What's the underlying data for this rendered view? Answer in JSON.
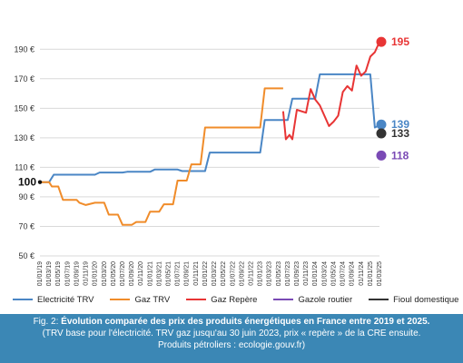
{
  "chart_data": {
    "type": "line",
    "title": "",
    "xlabel": "",
    "ylabel": "",
    "ylim": [
      50,
      200
    ],
    "y_ticks": [
      "50 €",
      "70 €",
      "90 €",
      "110 €",
      "130 €",
      "150 €",
      "170 €",
      "190 €"
    ],
    "grid": "horizontal",
    "legend_position": "bottom",
    "x_categories": [
      "01/01/19",
      "01/03/19",
      "01/05/19",
      "01/07/19",
      "01/09/19",
      "01/11/19",
      "01/01/20",
      "01/03/20",
      "01/05/20",
      "01/07/20",
      "01/09/20",
      "01/11/20",
      "01/01/21",
      "01/03/21",
      "01/05/21",
      "01/07/21",
      "01/09/21",
      "01/11/21",
      "01/01/22",
      "01/03/22",
      "01/05/22",
      "01/07/22",
      "01/09/22",
      "01/11/22",
      "01/01/23",
      "01/03/23",
      "01/05/23",
      "01/07/23",
      "01/09/23",
      "01/11/23",
      "01/01/24",
      "01/03/24",
      "01/05/24",
      "01/07/24",
      "01/09/24",
      "01/11/24",
      "01/01/25",
      "01/03/25"
    ],
    "series": [
      {
        "name": "Electricité TRV",
        "color": "#4a86c5",
        "points": [
          [
            0,
            100
          ],
          [
            1,
            100
          ],
          [
            1.5,
            105
          ],
          [
            6,
            105
          ],
          [
            6.5,
            106.5
          ],
          [
            9,
            106.5
          ],
          [
            9.5,
            107
          ],
          [
            12,
            107
          ],
          [
            12.5,
            108.5
          ],
          [
            15,
            108.5
          ],
          [
            15.5,
            107.5
          ],
          [
            18,
            107.5
          ],
          [
            18.5,
            120
          ],
          [
            24,
            120
          ],
          [
            24.5,
            142
          ],
          [
            27,
            142
          ],
          [
            27.5,
            156.5
          ],
          [
            30,
            156.5
          ],
          [
            30.5,
            173
          ],
          [
            36,
            173
          ],
          [
            36.5,
            137
          ],
          [
            37,
            138.5
          ]
        ]
      },
      {
        "name": "Gaz TRV",
        "color": "#f08c2a",
        "points": [
          [
            0,
            100
          ],
          [
            1,
            100
          ],
          [
            1.3,
            97
          ],
          [
            2,
            97
          ],
          [
            2.5,
            88
          ],
          [
            4,
            88
          ],
          [
            4.3,
            86
          ],
          [
            5,
            84.5
          ],
          [
            6,
            86
          ],
          [
            7,
            86
          ],
          [
            7.5,
            78
          ],
          [
            8.5,
            78
          ],
          [
            9,
            71
          ],
          [
            10,
            71
          ],
          [
            10.5,
            73
          ],
          [
            11.5,
            73
          ],
          [
            12,
            80
          ],
          [
            13,
            80
          ],
          [
            13.5,
            85
          ],
          [
            14.5,
            85
          ],
          [
            15,
            101
          ],
          [
            16,
            101
          ],
          [
            16.5,
            112
          ],
          [
            17.5,
            112
          ],
          [
            18,
            137
          ],
          [
            24,
            137
          ],
          [
            24.5,
            163.5
          ],
          [
            26.5,
            163.5
          ]
        ]
      },
      {
        "name": "Gaz Repère",
        "color": "#e83535",
        "points": [
          [
            26.5,
            148
          ],
          [
            26.8,
            129
          ],
          [
            27.2,
            132
          ],
          [
            27.5,
            129
          ],
          [
            28,
            149
          ],
          [
            29,
            147
          ],
          [
            29.5,
            163
          ],
          [
            30,
            156
          ],
          [
            30.5,
            152
          ],
          [
            31.5,
            138
          ],
          [
            32,
            141
          ],
          [
            32.5,
            145
          ],
          [
            33,
            161
          ],
          [
            33.5,
            165
          ],
          [
            34,
            162
          ],
          [
            34.5,
            179
          ],
          [
            35,
            172
          ],
          [
            35.5,
            175
          ],
          [
            36,
            185
          ],
          [
            36.5,
            188
          ],
          [
            37,
            195
          ]
        ]
      }
    ],
    "end_points": [
      {
        "name": "Electricité TRV",
        "x": 37,
        "value": 139,
        "label": "139",
        "color": "#4a86c5"
      },
      {
        "name": "Fioul domestique",
        "x": 37,
        "value": 133,
        "label": "133",
        "color": "#333333"
      },
      {
        "name": "Gazole routier",
        "x": 37,
        "value": 118,
        "label": "118",
        "color": "#7a4ab5"
      },
      {
        "name": "Gaz Repère",
        "x": 37,
        "value": 195,
        "label": "195",
        "color": "#e83535"
      }
    ],
    "start_point": {
      "x": 0,
      "value": 100,
      "label": "100"
    }
  },
  "legend": {
    "items": [
      {
        "label": "Electricité TRV",
        "color": "#4a86c5"
      },
      {
        "label": "Gaz TRV",
        "color": "#f08c2a"
      },
      {
        "label": "Gaz Repère",
        "color": "#e83535"
      },
      {
        "label": "Gazole routier",
        "color": "#7a4ab5"
      },
      {
        "label": "Fioul domestique",
        "color": "#333333"
      }
    ]
  },
  "caption": {
    "line1_prefix": "Fig. 2: ",
    "line1_bold": "Évolution comparée des prix des produits énergétiques en France entre 2019 et 2025.",
    "line2": "(TRV base pour l'électricité. TRV gaz jusqu'au 30 juin 2023, prix « repère » de la CRE ensuite.",
    "line3": "Produits pétroliers : ecologie.gouv.fr)",
    "background": "#3b87b5"
  }
}
